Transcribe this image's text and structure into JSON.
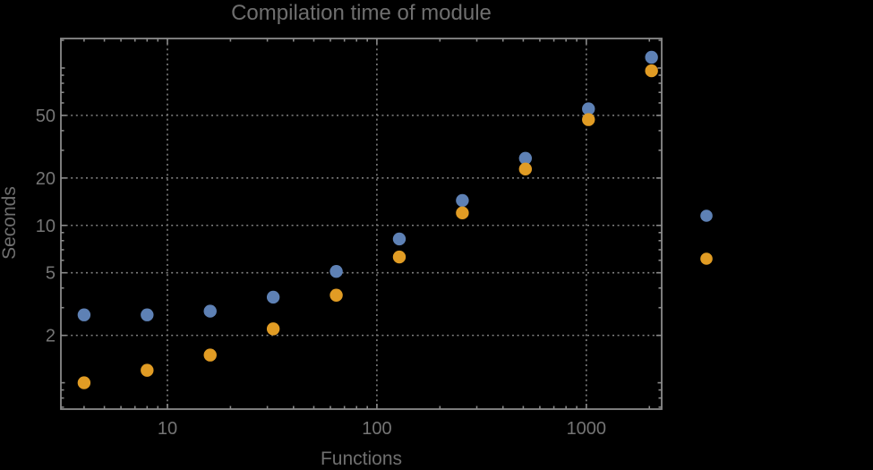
{
  "chart_data": {
    "type": "scatter",
    "title": "Compilation time of module",
    "xlabel": "Functions",
    "ylabel": "Seconds",
    "x_scale": "log",
    "y_scale": "log",
    "xlim": [
      3.1,
      2290
    ],
    "ylim": [
      0.68,
      154
    ],
    "grid": "dotted gridlines at labeled major ticks only",
    "legend_position": "right-of-frame, markers only (no visible text)",
    "x_ticks": [
      {
        "value": 10,
        "label": "10"
      },
      {
        "value": 100,
        "label": "100"
      },
      {
        "value": 1000,
        "label": "1000"
      }
    ],
    "x_minor_ticks": [
      4,
      5,
      6,
      7,
      8,
      9,
      20,
      30,
      40,
      50,
      60,
      70,
      80,
      90,
      200,
      300,
      400,
      500,
      600,
      700,
      800,
      900,
      2000
    ],
    "y_ticks": [
      {
        "value": 2,
        "label": "2"
      },
      {
        "value": 5,
        "label": "5"
      },
      {
        "value": 10,
        "label": "10"
      },
      {
        "value": 20,
        "label": "20"
      },
      {
        "value": 50,
        "label": "50"
      }
    ],
    "y_medium_ticks": [
      1,
      100
    ],
    "y_minor_ticks": [
      0.7,
      0.8,
      0.9,
      3,
      4,
      6,
      7,
      8,
      9,
      30,
      40,
      60,
      70,
      80,
      90,
      150
    ],
    "x": [
      4,
      8,
      16,
      32,
      64,
      128,
      256,
      512,
      1024,
      2048
    ],
    "series": [
      {
        "name": "series-1-blue",
        "color": "#5E81B5",
        "y": [
          2.7,
          2.7,
          2.85,
          3.5,
          5.1,
          8.2,
          14.4,
          26.7,
          55,
          117
        ]
      },
      {
        "name": "series-2-orange",
        "color": "#E19C24",
        "y": [
          1.0,
          1.2,
          1.5,
          2.2,
          3.6,
          6.3,
          12.0,
          22.8,
          47,
          96
        ]
      }
    ],
    "legend_markers": [
      {
        "color": "#5E81B5"
      },
      {
        "color": "#E19C24"
      }
    ],
    "style": {
      "background": "#000000",
      "frame_color": "#8a8a8a",
      "grid_color": "#808080",
      "tick_label_color": "#757575",
      "title_color": "#6f6f6f"
    }
  }
}
